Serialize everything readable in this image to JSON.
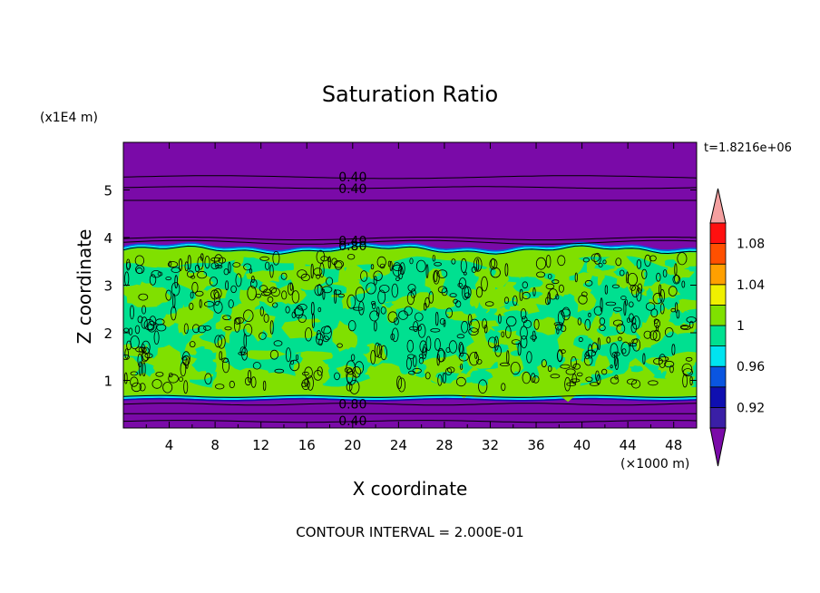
{
  "chart_data": {
    "type": "heatmap",
    "title": "Saturation Ratio",
    "xlabel": "X coordinate",
    "ylabel": "Z coordinate",
    "x_units": "(×1000 m)",
    "y_units": "(x1E4 m)",
    "time_label": "t=1.8216e+06",
    "footer": "CONTOUR INTERVAL = 2.000E-01",
    "xlim": [
      0,
      50
    ],
    "ylim": [
      0,
      6
    ],
    "x_ticks": [
      4,
      8,
      12,
      16,
      20,
      24,
      28,
      32,
      36,
      40,
      44,
      48
    ],
    "y_ticks": [
      1,
      2,
      3,
      4,
      5
    ],
    "colorbar": {
      "levels": [
        0.9,
        0.92,
        0.94,
        0.96,
        0.98,
        1.0,
        1.02,
        1.04,
        1.06,
        1.08,
        1.1
      ],
      "colors": [
        "#3a1fa6",
        "#0f0fb0",
        "#0a55e0",
        "#00e4f0",
        "#00e090",
        "#80e000",
        "#f0f000",
        "#ffa000",
        "#ff5000",
        "#ff1010"
      ],
      "under_color": "#7a0aa8",
      "over_color": "#f4a0a0",
      "tick_labels": [
        "0.92",
        "0.96",
        "1",
        "1.04",
        "1.08"
      ],
      "tick_values": [
        0.92,
        0.96,
        1.0,
        1.04,
        1.08
      ]
    },
    "layers": [
      {
        "name": "lower dry layer",
        "z_range": [
          0,
          0.65
        ],
        "value": "< 0.9"
      },
      {
        "name": "saturated layer",
        "z_range": [
          0.65,
          3.75
        ],
        "value": "0.98 - 1.02"
      },
      {
        "name": "upper dry layer",
        "z_range": [
          3.75,
          6
        ],
        "value": "< 0.9"
      }
    ],
    "contour_labels": [
      {
        "text": "0.40",
        "x": 20,
        "z": 5.3
      },
      {
        "text": "0.40",
        "x": 20,
        "z": 5.05
      },
      {
        "text": "0.40",
        "x": 20,
        "z": 3.95
      },
      {
        "text": "0.80",
        "x": 20,
        "z": 3.85
      },
      {
        "text": "0.80",
        "x": 20,
        "z": 0.52
      },
      {
        "text": "0.40",
        "x": 20,
        "z": 0.17
      }
    ]
  }
}
